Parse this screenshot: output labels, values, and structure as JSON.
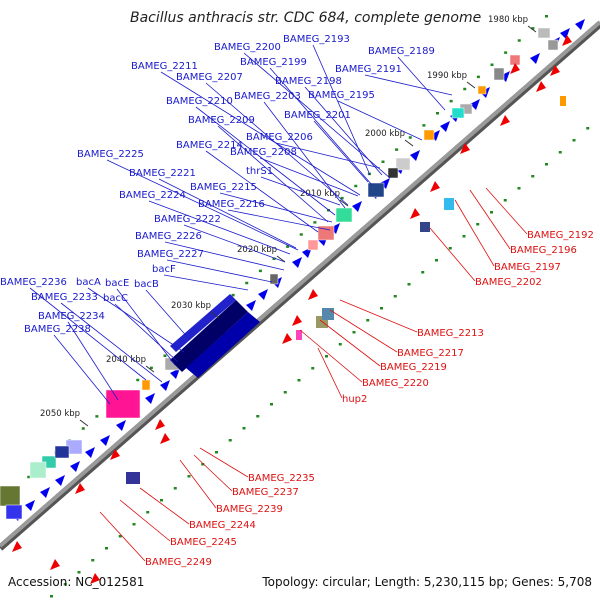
{
  "title": "Bacillus anthracis str. CDC 684, complete genome",
  "footer": {
    "accession": "Accession: NC_012581",
    "topology": "Topology: circular; Length: 5,230,115 bp; Genes: 5,708"
  },
  "colors": {
    "backbone": "#9a9a9a",
    "forward_label": "#1a1acc",
    "reverse_label": "#dd1111",
    "forward_arrow": "#0000ee",
    "reverse_arrow": "#ee0000",
    "tick": "#228822"
  },
  "kbp_marks": [
    "1980 kbp",
    "1990 kbp",
    "2000 kbp",
    "2010 kbp",
    "2020 kbp",
    "2030 kbp",
    "2040 kbp",
    "2050 kbp"
  ],
  "forward_genes": [
    "BAMEG_2193",
    "BAMEG_2200",
    "BAMEG_2189",
    "BAMEG_2211",
    "BAMEG_2199",
    "BAMEG_2191",
    "BAMEG_2207",
    "BAMEG_2198",
    "BAMEG_2210",
    "BAMEG_2203",
    "BAMEG_2195",
    "BAMEG_2209",
    "BAMEG_2201",
    "BAMEG_2206",
    "BAMEG_2214",
    "BAMEG_2208",
    "BAMEG_2225",
    "thrS1",
    "BAMEG_2221",
    "BAMEG_2215",
    "BAMEG_2224",
    "BAMEG_2216",
    "BAMEG_2222",
    "BAMEG_2226",
    "BAMEG_2227",
    "bacF",
    "BAMEG_2236",
    "bacA",
    "bacE",
    "bacB",
    "BAMEG_2233",
    "bacC",
    "BAMEG_2234",
    "BAMEG_2238"
  ],
  "reverse_genes": [
    "BAMEG_2192",
    "BAMEG_2196",
    "BAMEG_2197",
    "BAMEG_2202",
    "BAMEG_2213",
    "BAMEG_2217",
    "BAMEG_2219",
    "BAMEG_2220",
    "hup2",
    "BAMEG_2235",
    "BAMEG_2237",
    "BAMEG_2239",
    "BAMEG_2244",
    "BAMEG_2245",
    "BAMEG_2249"
  ]
}
